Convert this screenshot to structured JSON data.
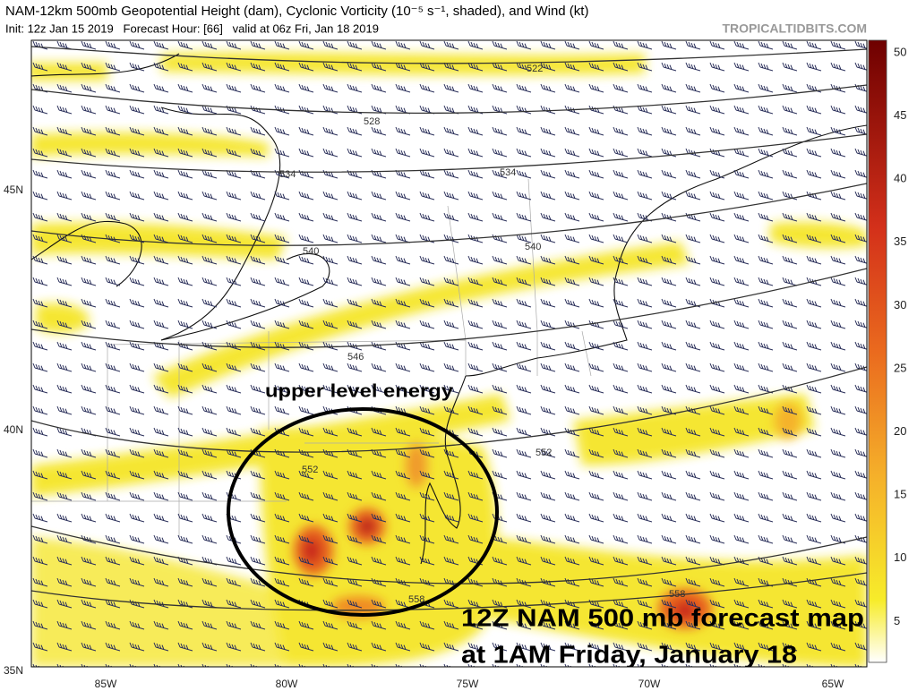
{
  "header": {
    "title": "NAM-12km 500mb Geopotential Height (dam), Cyclonic Vorticity (10⁻⁵ s⁻¹, shaded), and Wind (kt)",
    "subtitle": "Init: 12z Jan 15 2019   Forecast Hour: [66]   valid at 06z Fri, Jan 18 2019",
    "watermark": "TROPICALTIDBITS.COM"
  },
  "colorbar": {
    "labels": [
      50,
      45,
      40,
      35,
      30,
      25,
      20,
      15,
      10,
      5
    ]
  },
  "axes": {
    "latitude": [
      "45N",
      "40N",
      "35N"
    ],
    "longitude": [
      "85W",
      "80W",
      "75W",
      "70W",
      "65W"
    ]
  },
  "contours": [
    "522",
    "528",
    "534",
    "534",
    "540",
    "540",
    "546",
    "552",
    "552",
    "558",
    "558"
  ],
  "annotations": {
    "circle_label": "upper level energy",
    "caption": [
      "12Z NAM 500 mb forecast map",
      "at 1AM Friday, January 18"
    ]
  }
}
